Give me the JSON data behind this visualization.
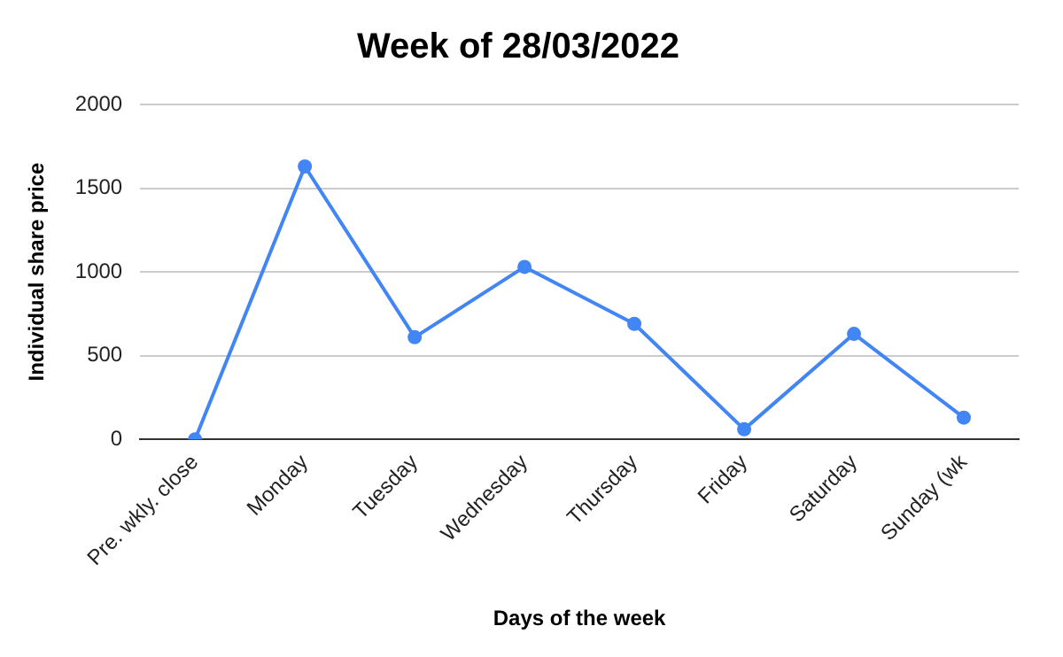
{
  "chart_data": {
    "type": "line",
    "title": "Week of 28/03/2022",
    "xlabel": "Days of the week",
    "ylabel": "Individual share price",
    "categories": [
      "Pre. wkly. close",
      "Monday",
      "Tuesday",
      "Wednesday",
      "Thursday",
      "Friday",
      "Saturday",
      "Sunday (wk"
    ],
    "series": [
      {
        "color": "#4285f4",
        "values": [
          0,
          1630,
          610,
          1030,
          690,
          60,
          630,
          130
        ]
      }
    ],
    "ylim": [
      0,
      2000
    ],
    "yticks": [
      0,
      500,
      1000,
      1500,
      2000
    ],
    "grid": "y",
    "legend": false,
    "marker": "circle",
    "line_style": "solid"
  }
}
